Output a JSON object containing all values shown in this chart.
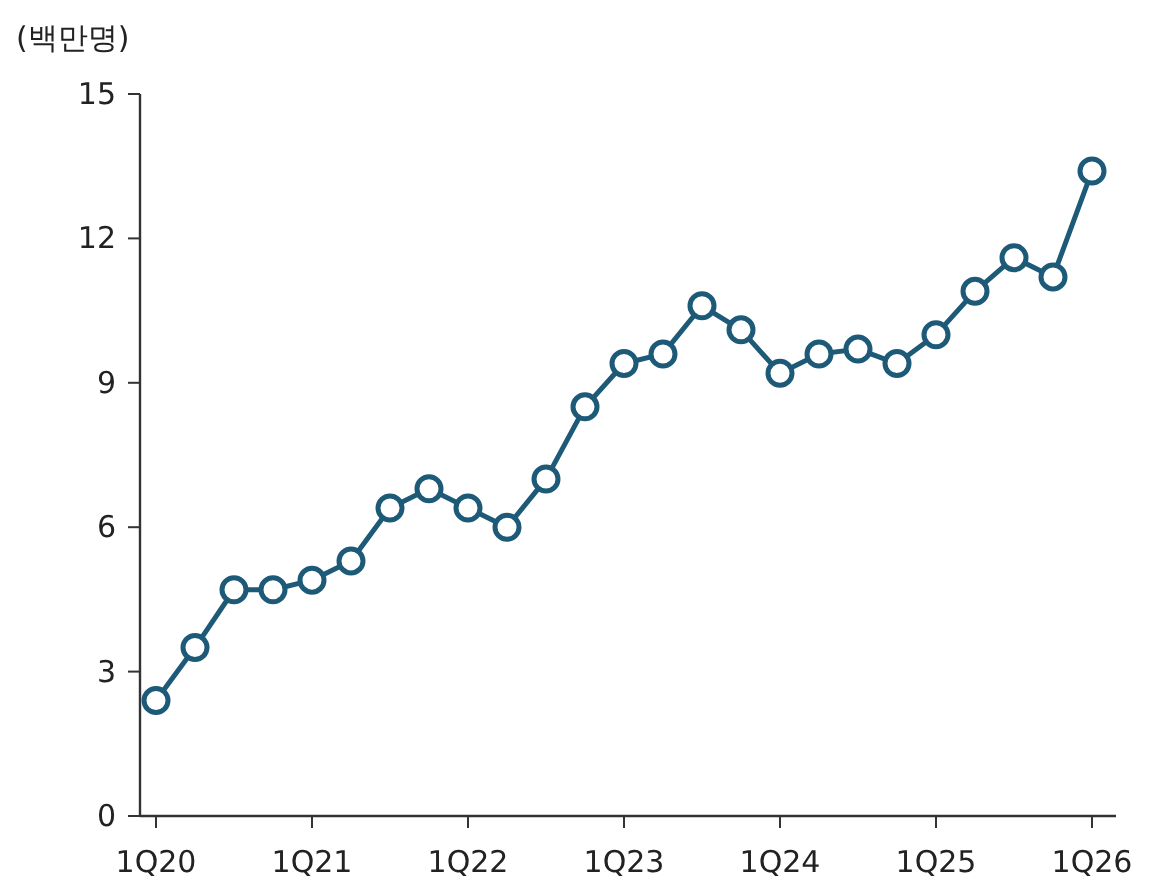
{
  "chart_data": {
    "type": "line",
    "ylabel": "(백만명)",
    "categories": [
      "1Q20",
      null,
      null,
      null,
      "1Q21",
      null,
      null,
      null,
      "1Q22",
      null,
      null,
      null,
      "1Q23",
      null,
      null,
      null,
      "1Q24",
      null,
      null,
      null,
      "1Q25",
      null,
      null,
      null,
      "1Q26"
    ],
    "series": [
      {
        "color": "#1d5a78",
        "values": [
          2.4,
          3.5,
          4.7,
          4.7,
          4.9,
          5.3,
          6.4,
          6.8,
          6.4,
          6.0,
          7.0,
          8.5,
          9.4,
          9.6,
          10.6,
          10.1,
          9.2,
          9.6,
          9.7,
          9.4,
          10.0,
          10.9,
          11.6,
          11.2,
          13.4
        ]
      }
    ],
    "ylim": [
      0,
      15
    ],
    "yticks": [
      0,
      3,
      6,
      9,
      12,
      15
    ],
    "marker": "circle",
    "line_style": "solid",
    "grid": false
  }
}
